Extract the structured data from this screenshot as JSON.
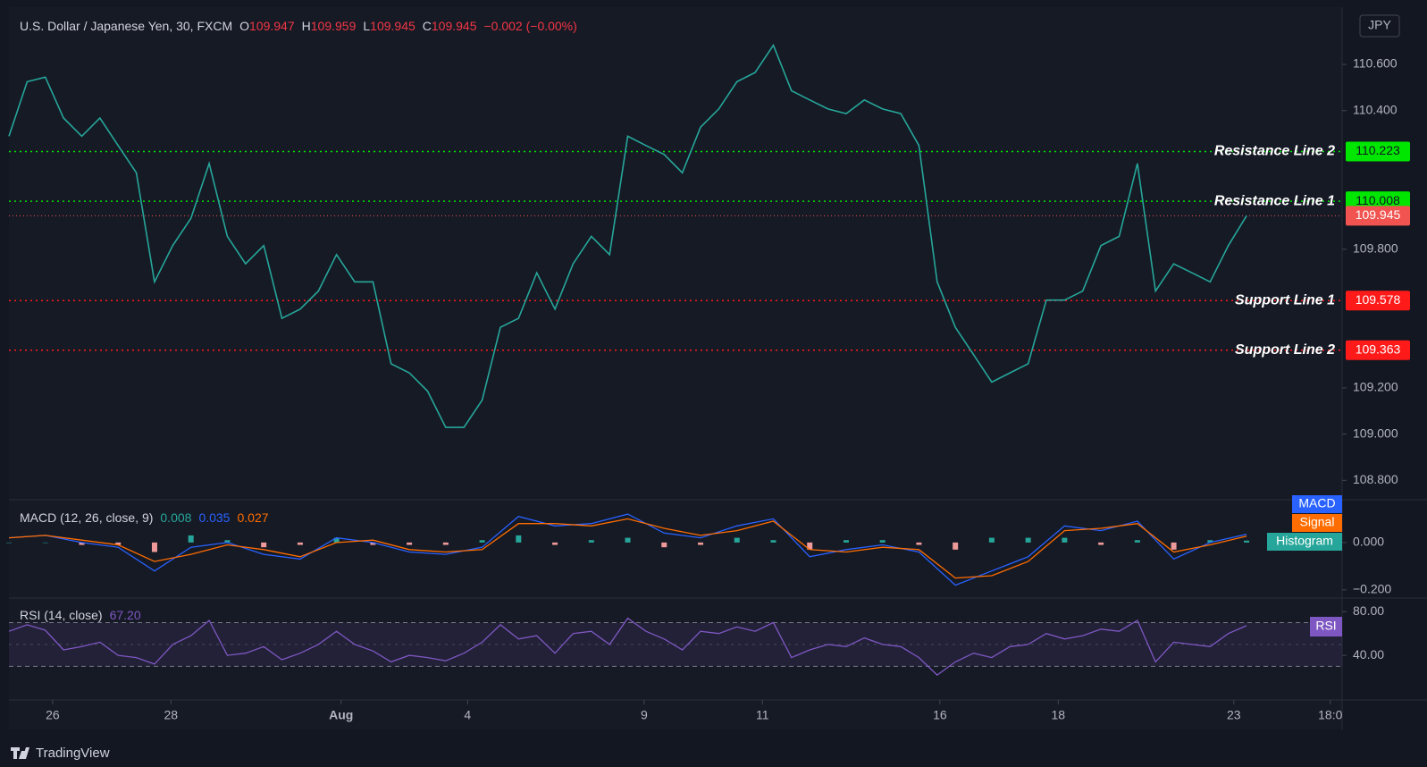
{
  "chart_data": [
    {
      "type": "line",
      "title": "U.S. Dollar / Japanese Yen, 30, FXCM",
      "ohlc": [
        {
          "key": "O",
          "value": "109.947"
        },
        {
          "key": "H",
          "value": "109.959"
        },
        {
          "key": "L",
          "value": "109.945"
        },
        {
          "key": "C",
          "value": "109.945"
        }
      ],
      "change": "−0.002 (−0.00%)",
      "x": [
        0,
        1,
        2,
        3,
        4,
        5,
        6,
        7,
        8,
        9,
        10,
        11,
        12,
        13,
        14,
        15,
        16,
        17,
        18,
        19,
        20,
        21,
        22,
        23,
        24,
        25,
        26,
        27,
        28,
        29,
        30,
        31,
        32,
        33,
        34,
        35,
        36,
        37,
        38,
        39,
        40,
        41,
        42,
        43,
        44,
        45,
        46,
        47,
        48,
        49,
        50,
        51,
        52,
        53,
        54,
        55,
        56,
        57,
        58,
        59,
        60,
        61,
        62,
        63,
        64,
        65,
        66,
        67,
        68
      ],
      "series": [
        {
          "color": "#26a69a",
          "values": [
            110.289,
            110.525,
            110.545,
            110.368,
            110.289,
            110.368,
            110.249,
            110.131,
            109.659,
            109.816,
            109.934,
            110.171,
            109.856,
            109.737,
            109.816,
            109.501,
            109.541,
            109.619,
            109.777,
            109.659,
            109.659,
            109.304,
            109.265,
            109.186,
            109.029,
            109.029,
            109.147,
            109.462,
            109.501,
            109.698,
            109.541,
            109.737,
            109.856,
            109.777,
            110.289,
            110.249,
            110.21,
            110.131,
            110.328,
            110.407,
            110.525,
            110.565,
            110.683,
            110.486,
            110.446,
            110.407,
            110.387,
            110.446,
            110.407,
            110.387,
            110.249,
            109.659,
            109.462,
            109.344,
            109.225,
            109.265,
            109.304,
            109.58,
            109.58,
            109.619,
            109.816,
            109.856,
            110.171,
            109.619,
            109.737,
            109.698,
            109.659,
            109.816,
            109.945
          ]
        }
      ],
      "xlim": [
        0,
        73.25
      ],
      "xticks": [
        {
          "value": 2.4,
          "label": "26"
        },
        {
          "value": 8.9,
          "label": "28"
        },
        {
          "value": 18.25,
          "label": "Aug"
        },
        {
          "value": 25.2,
          "label": "4"
        },
        {
          "value": 34.9,
          "label": "9"
        },
        {
          "value": 41.4,
          "label": "11"
        },
        {
          "value": 51.15,
          "label": "16"
        },
        {
          "value": 57.65,
          "label": "18"
        },
        {
          "value": 67.3,
          "label": "23"
        },
        {
          "value": 72.6,
          "label": "18:0"
        }
      ],
      "ylim": [
        108.72,
        110.84
      ],
      "yticks": [
        {
          "value": 108.8,
          "label": "108.800"
        },
        {
          "value": 109.0,
          "label": "109.000"
        },
        {
          "value": 109.2,
          "label": "109.200"
        },
        {
          "value": 109.8,
          "label": "109.800"
        },
        {
          "value": 110.4,
          "label": "110.400"
        },
        {
          "value": 110.6,
          "label": "110.600"
        }
      ],
      "levels": [
        {
          "name": "Resistance Line 2",
          "value": 110.223,
          "color": "#00e600"
        },
        {
          "name": "Resistance Line 1",
          "value": 110.008,
          "color": "#00e600"
        },
        {
          "name": "Support Line 1",
          "value": 109.578,
          "color": "#ff1a1a"
        },
        {
          "name": "Support Line 2",
          "value": 109.363,
          "color": "#ff1a1a"
        }
      ],
      "last_price": {
        "value": 109.945,
        "color": "#f05350"
      },
      "currency": "JPY"
    },
    {
      "type": "line",
      "title": "MACD (12, 26, close, 9)",
      "x": [
        0,
        2,
        4,
        6,
        8,
        10,
        12,
        14,
        16,
        18,
        20,
        22,
        24,
        26,
        28,
        30,
        32,
        34,
        36,
        38,
        40,
        42,
        44,
        46,
        48,
        50,
        52,
        54,
        56,
        58,
        60,
        62,
        64,
        66,
        68
      ],
      "ylim": [
        -0.227,
        0.177
      ],
      "yticks": [
        {
          "value": 0,
          "label": "0.000"
        },
        {
          "value": -0.2,
          "label": "−0.200"
        }
      ],
      "series": [
        {
          "name": "Histogram",
          "style": "histogram",
          "color": "#26a69a",
          "negative_color": "#ef9a9a",
          "values": [
            0,
            0,
            -0.01,
            -0.01,
            -0.04,
            0.03,
            0.01,
            -0.02,
            -0.01,
            0.02,
            -0.01,
            -0.01,
            -0.01,
            0.01,
            0.03,
            -0.01,
            0.01,
            0.02,
            -0.02,
            -0.01,
            0.02,
            0.01,
            -0.03,
            0.01,
            0.01,
            -0.01,
            -0.03,
            0.02,
            0.02,
            0.02,
            -0.01,
            0.01,
            -0.03,
            0.01,
            0.008
          ]
        },
        {
          "name": "MACD",
          "color": "#2962ff",
          "values": [
            0.02,
            0.03,
            0,
            -0.02,
            -0.12,
            -0.02,
            0,
            -0.05,
            -0.07,
            0.02,
            0,
            -0.04,
            -0.05,
            -0.02,
            0.11,
            0.07,
            0.08,
            0.12,
            0.04,
            0.02,
            0.07,
            0.1,
            -0.06,
            -0.03,
            -0.01,
            -0.04,
            -0.18,
            -0.12,
            -0.06,
            0.07,
            0.05,
            0.09,
            -0.07,
            0,
            0.035
          ]
        },
        {
          "name": "Signal",
          "color": "#ff6d00",
          "values": [
            0.02,
            0.03,
            0.01,
            -0.01,
            -0.08,
            -0.05,
            -0.01,
            -0.03,
            -0.06,
            0,
            0.01,
            -0.03,
            -0.04,
            -0.03,
            0.08,
            0.08,
            0.07,
            0.1,
            0.06,
            0.03,
            0.05,
            0.09,
            -0.03,
            -0.04,
            -0.02,
            -0.03,
            -0.15,
            -0.14,
            -0.08,
            0.05,
            0.06,
            0.08,
            -0.04,
            -0.01,
            0.027
          ]
        }
      ]
    },
    {
      "type": "line",
      "title": "RSI (14, close)",
      "legend_value": "67.20",
      "x": [
        0,
        1,
        2,
        3,
        4,
        5,
        6,
        7,
        8,
        9,
        10,
        11,
        12,
        13,
        14,
        15,
        16,
        17,
        18,
        19,
        20,
        21,
        22,
        23,
        24,
        25,
        26,
        27,
        28,
        29,
        30,
        31,
        32,
        33,
        34,
        35,
        36,
        37,
        38,
        39,
        40,
        41,
        42,
        43,
        44,
        45,
        46,
        47,
        48,
        49,
        50,
        51,
        52,
        53,
        54,
        55,
        56,
        57,
        58,
        59,
        60,
        61,
        62,
        63,
        64,
        65,
        66,
        67,
        68
      ],
      "ylim": [
        0,
        90
      ],
      "yticks": [
        {
          "value": 80,
          "label": "80.00"
        },
        {
          "value": 40,
          "label": "40.00"
        }
      ],
      "band": [
        30,
        70
      ],
      "midline": 50,
      "series": [
        {
          "name": "RSI",
          "color": "#7e57c2",
          "values": [
            62,
            68,
            63,
            45,
            48,
            52,
            40,
            38,
            32,
            50,
            58,
            72,
            40,
            42,
            48,
            36,
            42,
            50,
            62,
            50,
            44,
            34,
            40,
            38,
            35,
            42,
            52,
            68,
            55,
            58,
            42,
            60,
            62,
            50,
            74,
            62,
            55,
            45,
            62,
            60,
            66,
            62,
            70,
            38,
            45,
            50,
            48,
            56,
            50,
            48,
            38,
            22,
            34,
            42,
            38,
            48,
            50,
            60,
            55,
            58,
            64,
            62,
            72,
            34,
            52,
            50,
            48,
            60,
            67.2
          ]
        }
      ]
    }
  ],
  "brand": "TradingView"
}
